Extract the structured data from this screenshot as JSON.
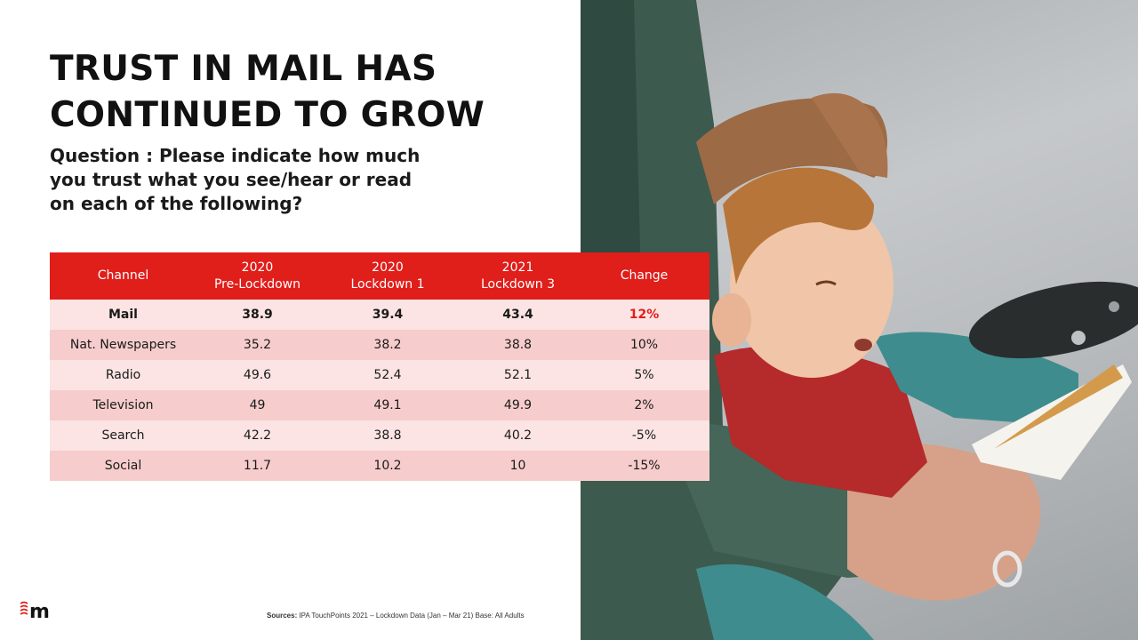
{
  "slide": {
    "title_lines": [
      "TRUST IN MAIL HAS",
      "CONTINUED TO GROW"
    ],
    "question": "Question : Please indicate how much you trust what you see/hear or read on each of the following?"
  },
  "table": {
    "headers": [
      [
        "Channel"
      ],
      [
        "2020",
        "Pre-Lockdown"
      ],
      [
        "2020",
        "Lockdown 1"
      ],
      [
        "2021",
        "Lockdown 3"
      ],
      [
        "Change"
      ]
    ],
    "rows": [
      [
        "Mail",
        "38.9",
        "39.4",
        "43.4",
        "12%"
      ],
      [
        "Nat. Newspapers",
        "35.2",
        "38.2",
        "38.8",
        "10%"
      ],
      [
        "Radio",
        "49.6",
        "52.4",
        "52.1",
        "5%"
      ],
      [
        "Television",
        "49",
        "49.1",
        "49.9",
        "2%"
      ],
      [
        "Search",
        "42.2",
        "38.8",
        "40.2",
        "-5%"
      ],
      [
        "Social",
        "11.7",
        "10.2",
        "10",
        "-15%"
      ]
    ]
  },
  "sources": {
    "label": "Sources:",
    "text": " IPA TouchPoints 2021 – Lockdown Data (Jan – Mar 21)  Base: All Adults"
  },
  "logo": {
    "letter": "m",
    "color": "#e01e1a"
  },
  "colors": {
    "header_red": "#e01e1a",
    "row_light": "#fbe4e3",
    "row_dark": "#f6cdcc"
  }
}
